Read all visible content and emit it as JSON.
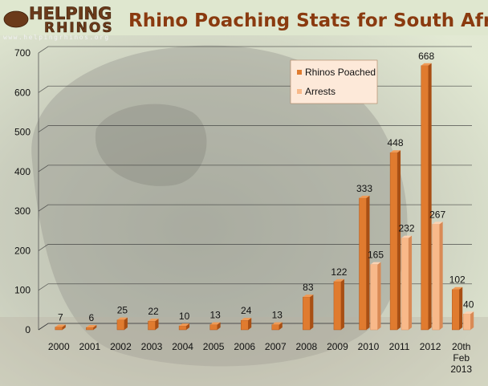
{
  "logo": {
    "line1": "HELPING",
    "line2": "RHINOS",
    "url": "www.helpingrhinos.org"
  },
  "colors": {
    "poached": "#e07b2f",
    "poached_dark": "#a84f14",
    "arrests": "#f8b98a",
    "arrests_dark": "#d98a55",
    "title": "#8a3a0f",
    "legend_bg": "#fde9d9"
  },
  "chart_data": {
    "type": "bar",
    "title": "Rhino Poaching Stats for South Africa",
    "xlabel": "",
    "ylabel": "",
    "categories": [
      "2000",
      "2001",
      "2002",
      "2003",
      "2004",
      "2005",
      "2006",
      "2007",
      "2008",
      "2009",
      "2010",
      "2011",
      "2012",
      "20th Feb 2013"
    ],
    "series": [
      {
        "name": "Rhinos Poached",
        "values": [
          7,
          6,
          25,
          22,
          10,
          13,
          24,
          13,
          83,
          122,
          333,
          448,
          668,
          102
        ]
      },
      {
        "name": "Arrests",
        "values": [
          null,
          null,
          null,
          null,
          null,
          null,
          null,
          null,
          null,
          null,
          165,
          232,
          267,
          40
        ]
      }
    ],
    "y_ticks": [
      0,
      100,
      200,
      300,
      400,
      500,
      600,
      700
    ],
    "ylim": [
      0,
      700
    ],
    "grid": true,
    "legend_position": "top-right"
  }
}
